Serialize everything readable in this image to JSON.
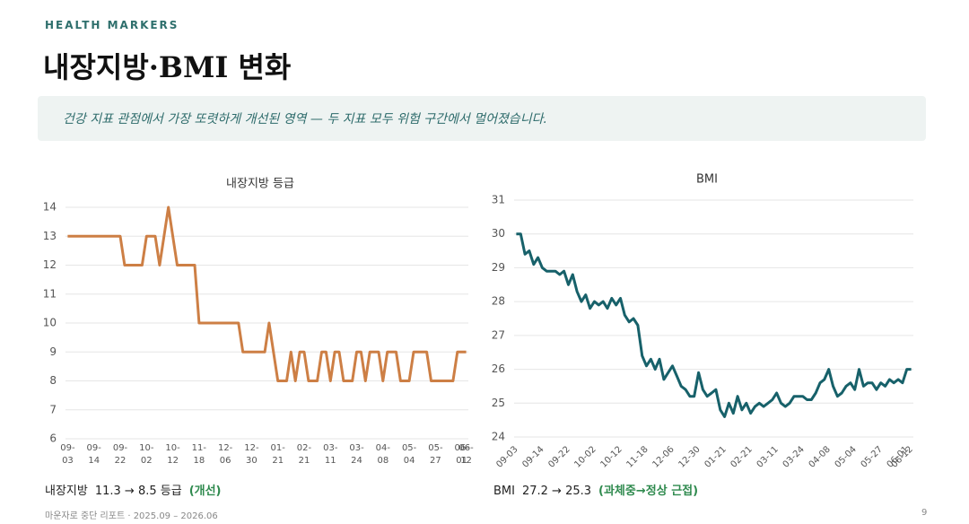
{
  "header": "HEALTH MARKERS",
  "title": "내장지방·BMI 변화",
  "callout": "건강 지표 관점에서 가장 또렷하게 개선된 영역 — 두 지표 모두 위험 구간에서 멀어졌습니다.",
  "footer": {
    "source": "마운자로 중단 리포트 · 2025.09 – 2026.06",
    "page": "9"
  },
  "chart_data": [
    {
      "type": "line",
      "title": "내장지방 등급",
      "color": "#cd7f45",
      "grid": true,
      "caption": {
        "label": "내장지방",
        "text": "11.3 → 8.5 등급",
        "note": "(개선)"
      },
      "categories": [
        "09-03",
        null,
        null,
        null,
        null,
        null,
        "09-14",
        null,
        null,
        null,
        null,
        null,
        "09-22",
        null,
        null,
        null,
        null,
        null,
        "10-02",
        null,
        null,
        null,
        null,
        null,
        "10-12",
        null,
        null,
        null,
        null,
        null,
        "11-18",
        null,
        null,
        null,
        null,
        null,
        "12-06",
        null,
        null,
        null,
        null,
        null,
        "12-30",
        null,
        null,
        null,
        null,
        null,
        "01-21",
        null,
        null,
        null,
        null,
        null,
        "02-21",
        null,
        null,
        null,
        null,
        null,
        "03-11",
        null,
        null,
        null,
        null,
        null,
        "03-24",
        null,
        null,
        null,
        null,
        null,
        "04-08",
        null,
        null,
        null,
        null,
        null,
        "05-04",
        null,
        null,
        null,
        null,
        null,
        "05-27",
        null,
        null,
        null,
        null,
        null,
        "06-01",
        "06-12"
      ],
      "values": [
        13,
        13,
        13,
        13,
        13,
        13,
        13,
        13,
        13,
        13,
        13,
        13,
        13,
        12,
        12,
        12,
        12,
        12,
        13,
        13,
        13,
        12,
        13,
        14,
        13,
        12,
        12,
        12,
        12,
        12,
        10,
        10,
        10,
        10,
        10,
        10,
        10,
        10,
        10,
        10,
        9,
        9,
        9,
        9,
        9,
        9,
        10,
        9,
        8,
        8,
        8,
        9,
        8,
        9,
        9,
        8,
        8,
        8,
        9,
        9,
        8,
        9,
        9,
        8,
        8,
        8,
        9,
        9,
        8,
        9,
        9,
        9,
        8,
        9,
        9,
        9,
        8,
        8,
        8,
        9,
        9,
        9,
        9,
        8,
        8,
        8,
        8,
        8,
        8,
        9,
        9,
        9
      ],
      "ylim": [
        6,
        14
      ],
      "yticks": [
        6,
        7,
        8,
        9,
        10,
        11,
        12,
        13,
        14
      ]
    },
    {
      "type": "line",
      "title": "BMI",
      "color": "#17616a",
      "grid": true,
      "caption": {
        "label": "BMI",
        "text": "27.2 → 25.3",
        "note": "(과체중→정상 근접)"
      },
      "categories": [
        "09-03",
        null,
        null,
        null,
        null,
        null,
        "09-14",
        null,
        null,
        null,
        null,
        null,
        "09-22",
        null,
        null,
        null,
        null,
        null,
        "10-02",
        null,
        null,
        null,
        null,
        null,
        "10-12",
        null,
        null,
        null,
        null,
        null,
        "11-18",
        null,
        null,
        null,
        null,
        null,
        "12-06",
        null,
        null,
        null,
        null,
        null,
        "12-30",
        null,
        null,
        null,
        null,
        null,
        "01-21",
        null,
        null,
        null,
        null,
        null,
        "02-21",
        null,
        null,
        null,
        null,
        null,
        "03-11",
        null,
        null,
        null,
        null,
        null,
        "03-24",
        null,
        null,
        null,
        null,
        null,
        "04-08",
        null,
        null,
        null,
        null,
        null,
        "05-04",
        null,
        null,
        null,
        null,
        null,
        "05-27",
        null,
        null,
        null,
        null,
        null,
        "06-01",
        "06-12"
      ],
      "values": [
        30.0,
        30.0,
        29.4,
        29.5,
        29.1,
        29.3,
        29.0,
        28.9,
        28.9,
        28.9,
        28.8,
        28.9,
        28.5,
        28.8,
        28.3,
        28.0,
        28.2,
        27.8,
        28.0,
        27.9,
        28.0,
        27.8,
        28.1,
        27.9,
        28.1,
        27.6,
        27.4,
        27.5,
        27.3,
        26.4,
        26.1,
        26.3,
        26.0,
        26.3,
        25.7,
        25.9,
        26.1,
        25.8,
        25.5,
        25.4,
        25.2,
        25.2,
        25.9,
        25.4,
        25.2,
        25.3,
        25.4,
        24.8,
        24.6,
        25.0,
        24.7,
        25.2,
        24.8,
        25.0,
        24.7,
        24.9,
        25.0,
        24.9,
        25.0,
        25.1,
        25.3,
        25.0,
        24.9,
        25.0,
        25.2,
        25.2,
        25.2,
        25.1,
        25.1,
        25.3,
        25.6,
        25.7,
        26.0,
        25.5,
        25.2,
        25.3,
        25.5,
        25.6,
        25.4,
        26.0,
        25.5,
        25.6,
        25.6,
        25.4,
        25.6,
        25.5,
        25.7,
        25.6,
        25.7,
        25.6,
        26.0,
        26.0
      ],
      "ylim": [
        24,
        31
      ],
      "yticks": [
        24,
        25,
        26,
        27,
        28,
        29,
        30,
        31
      ]
    }
  ]
}
